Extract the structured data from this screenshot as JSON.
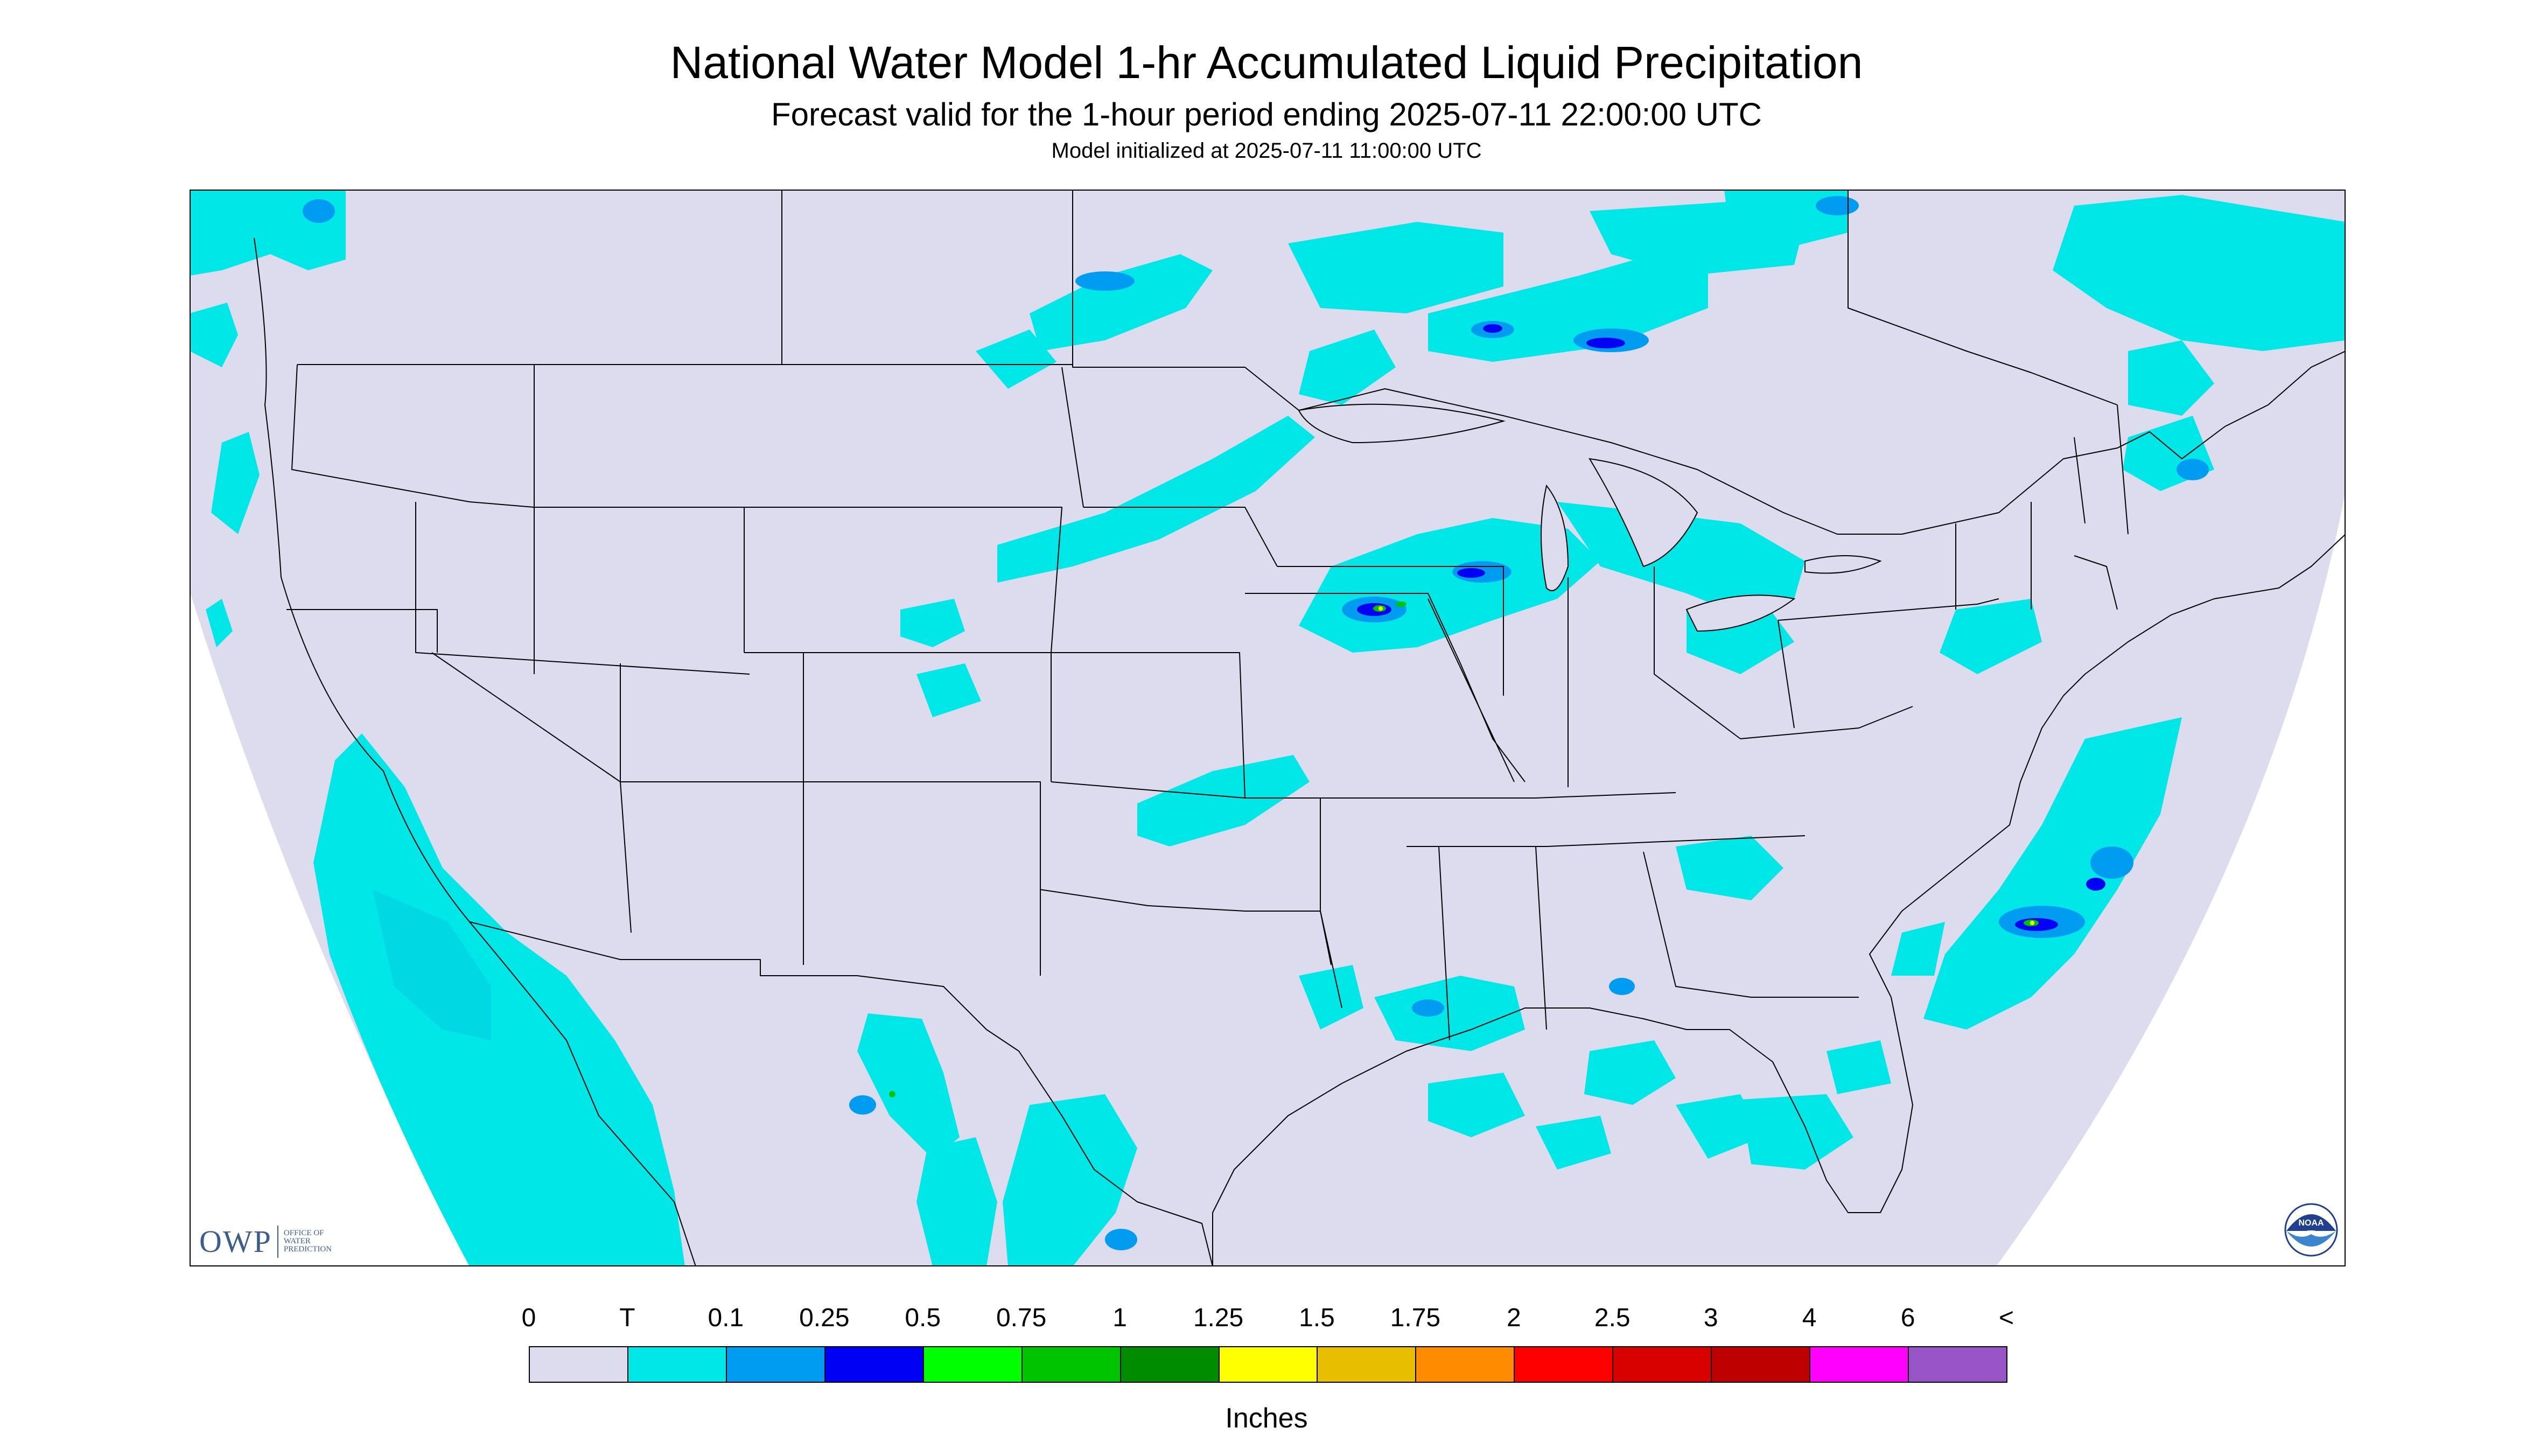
{
  "header": {
    "title": "National Water Model 1-hr Accumulated Liquid Precipitation",
    "subtitle": "Forecast valid for the 1-hour period ending 2025-07-11 22:00:00 UTC",
    "init_line": "Model initialized at 2025-07-11 11:00:00 UTC"
  },
  "legend": {
    "labels": [
      "0",
      "T",
      "0.1",
      "0.25",
      "0.5",
      "0.75",
      "1",
      "1.25",
      "1.5",
      "1.75",
      "2",
      "2.5",
      "3",
      "4",
      "6",
      "<"
    ],
    "colors": [
      "#dcdcee",
      "#00e7e7",
      "#009cf2",
      "#0000f5",
      "#00ff00",
      "#00c400",
      "#008c00",
      "#ffff00",
      "#e7be00",
      "#ff8c00",
      "#ff0000",
      "#d90000",
      "#bd0000",
      "#ff00ff",
      "#9955c7"
    ],
    "units": "Inches"
  },
  "logos": {
    "owp_mark": "OWP",
    "owp_text": "OFFICE OF WATER PREDICTION",
    "noaa_text": "NOAA"
  },
  "map": {
    "background_color": "#dcdcee",
    "light_precip_color": "#00e7e7",
    "medium_precip_color": "#009cf2",
    "heavy_precip_color": "#0000f5",
    "extreme_precip_color": "#00c400"
  }
}
